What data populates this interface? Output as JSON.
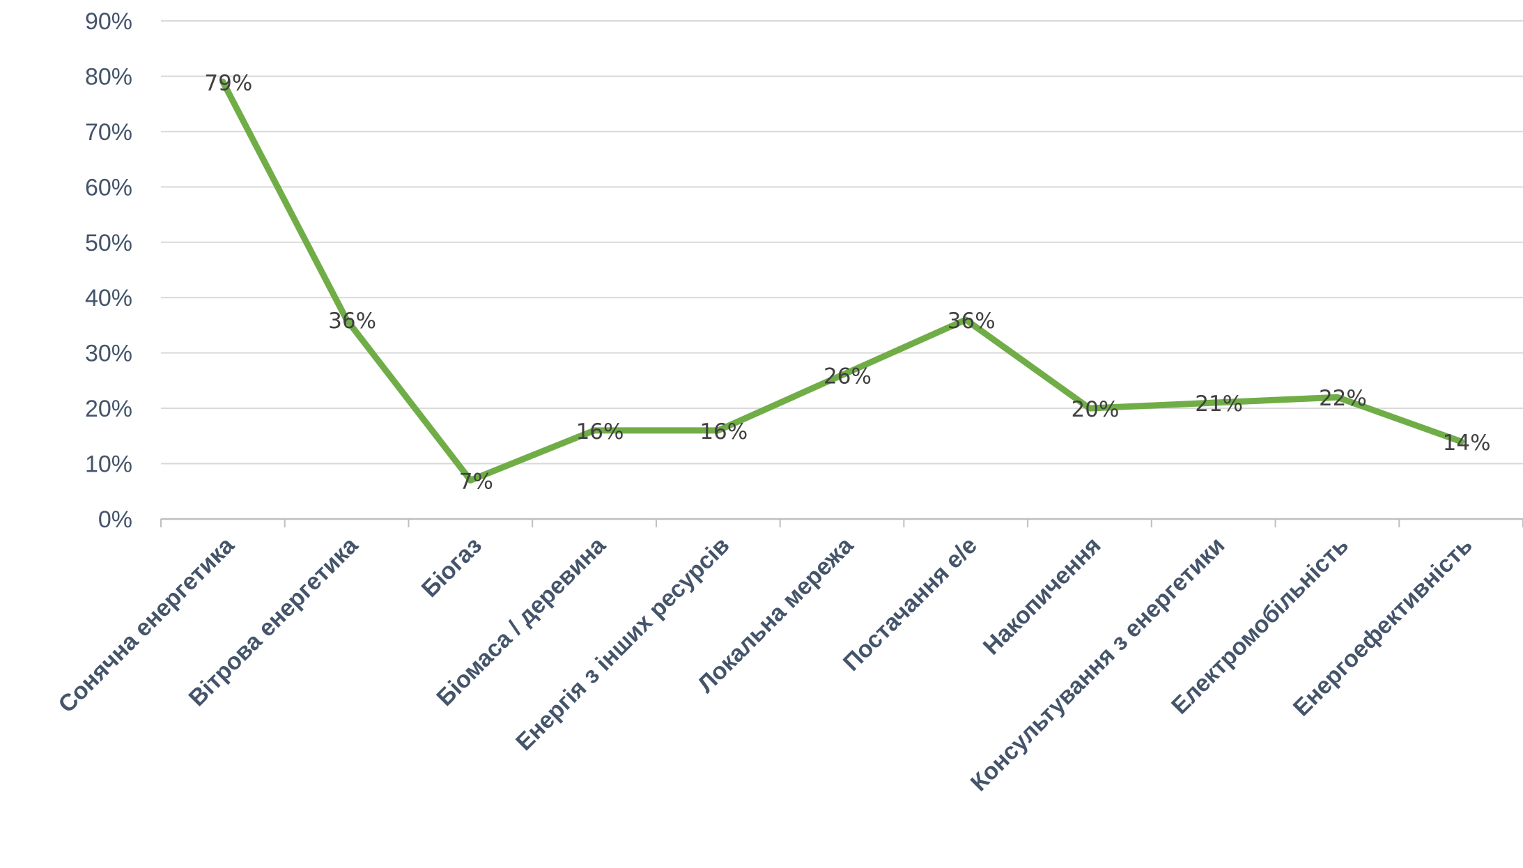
{
  "chart_data": {
    "type": "line",
    "title": "",
    "xlabel": "",
    "ylabel": "",
    "categories": [
      "Сонячна енергетика",
      "Вітрова енергетика",
      "Біогаз",
      "Біомаса / деревина",
      "Енергія з інших ресурсів",
      "Локальна мережа",
      "Постачання е/е",
      "Накопичення",
      "Консультування з енергетики",
      "Електромобільність",
      "Енергоефективність"
    ],
    "series": [
      {
        "values": [
          79,
          36,
          7,
          16,
          16,
          26,
          36,
          20,
          21,
          22,
          14
        ],
        "labels": [
          "79%",
          "36%",
          "7%",
          "16%",
          "16%",
          "26%",
          "36%",
          "20%",
          "21%",
          "22%",
          "14%"
        ],
        "color": "#70ad47"
      }
    ],
    "ylim": [
      0,
      90
    ],
    "yticks": [
      0,
      10,
      20,
      30,
      40,
      50,
      60,
      70,
      80,
      90
    ],
    "ytick_labels": [
      "0%",
      "10%",
      "20%",
      "30%",
      "40%",
      "50%",
      "60%",
      "70%",
      "80%",
      "90%"
    ],
    "grid": true,
    "legend": "none",
    "colors": {
      "line": "#70ad47",
      "grid": "#d9d9d9",
      "axis_text": "#44546a",
      "label_text": "#404040"
    }
  }
}
